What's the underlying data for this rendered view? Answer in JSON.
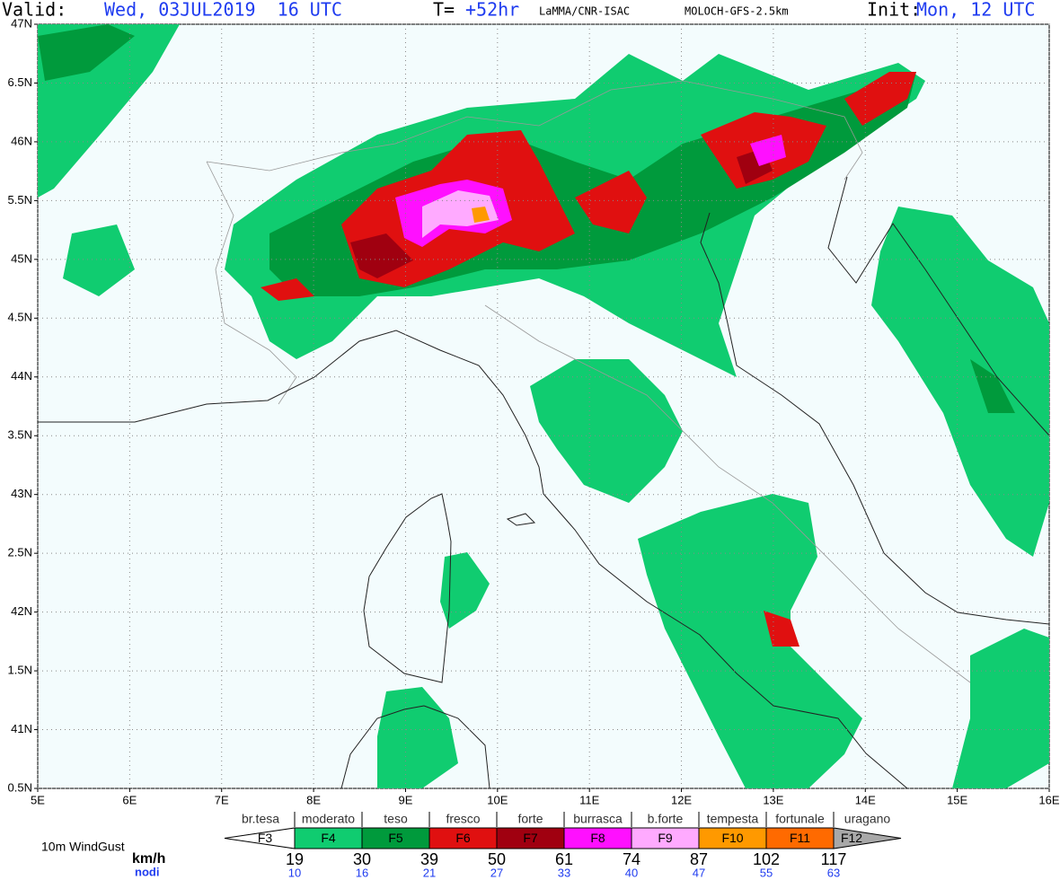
{
  "header": {
    "valid_label": "Valid:",
    "valid_time": "Wed, 03JUL2019  16 UTC",
    "lead_label": "T=",
    "lead_time": "+52hr",
    "institute": "LaMMA/CNR-ISAC",
    "model": "MOLOCH-GFS-2.5km",
    "init_label": "Init:",
    "init_time": "Mon, 12 UTC"
  },
  "axes": {
    "lat_labels": [
      "47N",
      "6.5N",
      "46N",
      "5.5N",
      "45N",
      "4.5N",
      "44N",
      "3.5N",
      "43N",
      "2.5N",
      "42N",
      "1.5N",
      "41N",
      "0.5N"
    ],
    "lon_labels": [
      "5E",
      "6E",
      "7E",
      "8E",
      "9E",
      "10E",
      "11E",
      "12E",
      "13E",
      "14E",
      "15E",
      "16E"
    ]
  },
  "legend": {
    "title": "10m WindGust",
    "unit_kmh": "km/h",
    "unit_knots": "nodi",
    "descriptions": [
      "br.tesa",
      "moderato",
      "teso",
      "fresco",
      "forte",
      "burrasca",
      "b.forte",
      "tempesta",
      "fortunale",
      "uragano"
    ],
    "classes": [
      {
        "label": "F3",
        "color": "#ffffff"
      },
      {
        "label": "F4",
        "color": "#10cc70"
      },
      {
        "label": "F5",
        "color": "#009a3c"
      },
      {
        "label": "F6",
        "color": "#e01010"
      },
      {
        "label": "F7",
        "color": "#a00010"
      },
      {
        "label": "F8",
        "color": "#ff10ff"
      },
      {
        "label": "F9",
        "color": "#ffaaff"
      },
      {
        "label": "F10",
        "color": "#ff9900"
      },
      {
        "label": "F11",
        "color": "#ff6a00"
      },
      {
        "label": "F12",
        "color": "#a8a8a8"
      }
    ],
    "kmh": [
      19,
      30,
      39,
      50,
      61,
      74,
      87,
      102,
      117
    ],
    "knots": [
      10,
      16,
      21,
      27,
      33,
      40,
      47,
      55,
      63
    ]
  }
}
